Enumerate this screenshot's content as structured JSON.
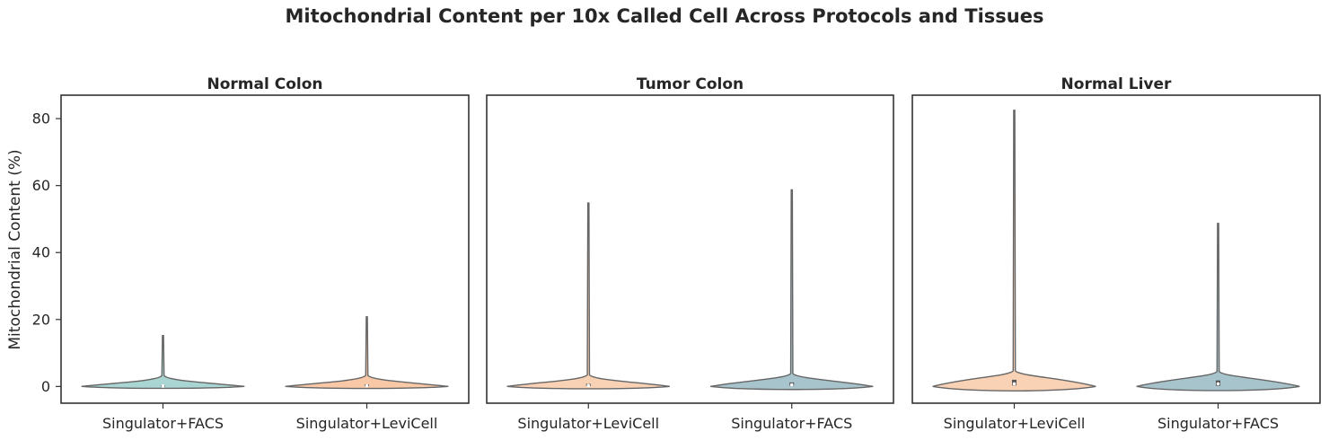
{
  "chart_data": {
    "type": "violin",
    "title": "Mitochondrial Content per 10x Called Cell Across Protocols and Tissues",
    "ylabel": "Mitochondrial Content (%)",
    "ylim": [
      -5,
      87
    ],
    "yticks": [
      0,
      20,
      40,
      60,
      80
    ],
    "grid": false,
    "panels": [
      {
        "title": "Normal Colon",
        "categories": [
          "Singulator+FACS",
          "Singulator+LeviCell"
        ],
        "violins": [
          {
            "category": "Singulator+FACS",
            "min": 0,
            "max": 15.2,
            "median": 0.1,
            "q1": 0.05,
            "q3": 0.3,
            "color": "#a9d6d3"
          },
          {
            "category": "Singulator+LeviCell",
            "min": 0,
            "max": 20.8,
            "median": 0.2,
            "q1": 0.05,
            "q3": 0.6,
            "color": "#f9c9a7"
          }
        ]
      },
      {
        "title": "Tumor Colon",
        "categories": [
          "Singulator+LeviCell",
          "Singulator+FACS"
        ],
        "violins": [
          {
            "category": "Singulator+LeviCell",
            "min": 0,
            "max": 54.8,
            "median": 0.3,
            "q1": 0.1,
            "q3": 0.8,
            "color": "#f9d2b5"
          },
          {
            "category": "Singulator+FACS",
            "min": 0,
            "max": 58.7,
            "median": 0.5,
            "q1": 0.2,
            "q3": 1.2,
            "color": "#a7c4cc"
          }
        ]
      },
      {
        "title": "Normal Liver",
        "categories": [
          "Singulator+LeviCell",
          "Singulator+FACS"
        ],
        "violins": [
          {
            "category": "Singulator+LeviCell",
            "min": 0,
            "max": 82.5,
            "median": 0.8,
            "q1": 0.3,
            "q3": 2.0,
            "color": "#f9d2b5"
          },
          {
            "category": "Singulator+FACS",
            "min": 0,
            "max": 48.7,
            "median": 0.8,
            "q1": 0.2,
            "q3": 1.8,
            "color": "#a7c4cc"
          }
        ]
      }
    ]
  }
}
